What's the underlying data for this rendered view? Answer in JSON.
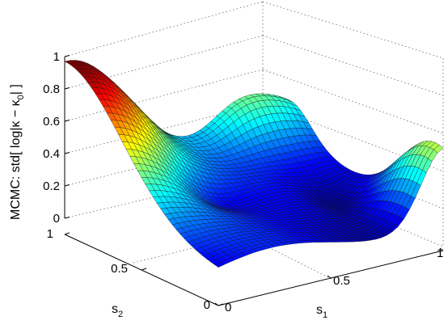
{
  "chart_data": {
    "type": "surface",
    "colormap": "jet",
    "grid": true,
    "xlabel": "s",
    "xlabel_sub": "1",
    "ylabel": "s",
    "ylabel_sub": "2",
    "zlabel": "MCMC: std[ log|κ − κ",
    "zlabel_sub": "0",
    "zlabel_end": "| ]",
    "xlim": [
      0,
      1
    ],
    "ylim": [
      0,
      1
    ],
    "zlim": [
      0,
      1
    ],
    "x_ticks": [
      "0",
      "0.5",
      "1"
    ],
    "y_ticks": [
      "0",
      "0.5",
      "1"
    ],
    "z_ticks": [
      "0",
      "0.2",
      "0.4",
      "0.6",
      "0.8",
      "1"
    ],
    "corner_values": [
      {
        "s1": 0,
        "s2": 0,
        "z": 0.15
      },
      {
        "s1": 1,
        "s2": 0,
        "z": 0.52
      },
      {
        "s1": 0,
        "s2": 1,
        "z": 0.95
      },
      {
        "s1": 1,
        "s2": 1,
        "z": 0.62
      }
    ],
    "features": [
      {
        "s1": 0.02,
        "s2": 0.98,
        "z": 0.95,
        "label": "max"
      },
      {
        "s1": 0.85,
        "s2": 0.45,
        "z": 0.05,
        "label": "min"
      }
    ]
  }
}
